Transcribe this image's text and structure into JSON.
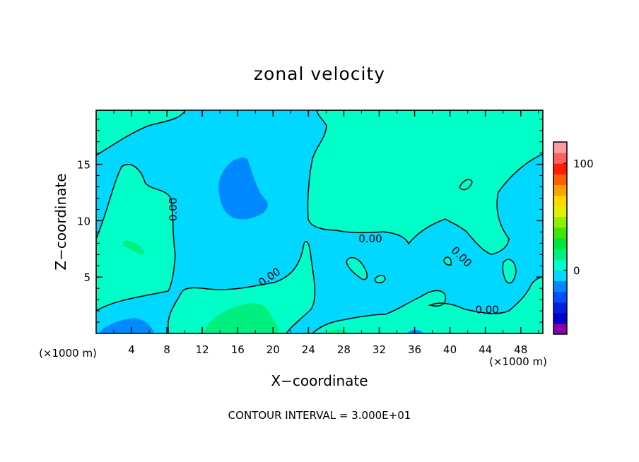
{
  "chart_data": {
    "type": "heatmap",
    "title": "zonal velocity",
    "xlabel": "X−coordinate",
    "ylabel": "Z−coordinate",
    "x_unit_left": "(×1000 m)",
    "x_unit_right": "(×1000 m)",
    "x_ticks": [
      4,
      8,
      12,
      16,
      20,
      24,
      28,
      32,
      36,
      40,
      44,
      48
    ],
    "y_ticks": [
      5,
      10,
      15
    ],
    "xlim": [
      0,
      50.5
    ],
    "ylim": [
      0,
      19.8
    ],
    "contour_interval_text": "CONTOUR INTERVAL = 3.000E+01",
    "contour_labels": [
      {
        "text": "0.00",
        "x": 8.7,
        "y": 11,
        "rotation": -90
      },
      {
        "text": "0.00",
        "x": 19.6,
        "y": 5,
        "rotation": -35
      },
      {
        "text": "0.00",
        "x": 31,
        "y": 8.4,
        "rotation": 0
      },
      {
        "text": "0.00",
        "x": 41.3,
        "y": 6.8,
        "rotation": 45
      },
      {
        "text": "0.00",
        "x": 44.2,
        "y": 2.1,
        "rotation": 0
      }
    ],
    "colorbar": {
      "range": [
        -60,
        120
      ],
      "tick_labels": [
        {
          "label": "100",
          "value": 100
        },
        {
          "label": "0",
          "value": 0
        }
      ],
      "colors": [
        "#8a00a8",
        "#0000c8",
        "#0020e0",
        "#0050ff",
        "#0088ff",
        "#00d8ff",
        "#00ffc8",
        "#00f080",
        "#00e640",
        "#40e600",
        "#90ee00",
        "#e0f000",
        "#ffd800",
        "#ffa000",
        "#ff6000",
        "#ff2000",
        "#ff6060",
        "#ff9aa0"
      ]
    },
    "field_colors": {
      "negative": "#00d8ff",
      "more_negative": "#0088ff",
      "positive": "#00ffc8",
      "more_positive": "#00f080"
    }
  }
}
